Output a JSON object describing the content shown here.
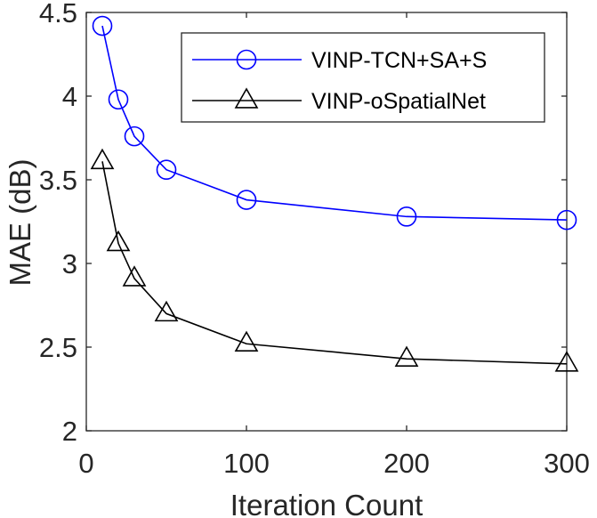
{
  "chart_data": {
    "type": "line",
    "xlabel": "Iteration Count",
    "ylabel": "MAE (dB)",
    "xlim": [
      0,
      300
    ],
    "ylim": [
      2,
      4.5
    ],
    "xticks": [
      0,
      100,
      200,
      300
    ],
    "xtick_labels": [
      "0",
      "100",
      "200",
      "300"
    ],
    "yticks": [
      2,
      2.5,
      3,
      3.5,
      4,
      4.5
    ],
    "ytick_labels": [
      "2",
      "2.5",
      "3",
      "3.5",
      "4",
      "4.5"
    ],
    "grid": false,
    "legend_position": "top-right",
    "x": [
      10,
      20,
      30,
      50,
      100,
      200,
      300
    ],
    "series": [
      {
        "name": "VINP-TCN+SA+S",
        "values": [
          4.42,
          3.98,
          3.76,
          3.56,
          3.38,
          3.28,
          3.26
        ],
        "color": "#0000ff",
        "marker": "circle"
      },
      {
        "name": "VINP-oSpatialNet",
        "values": [
          3.61,
          3.12,
          2.91,
          2.7,
          2.52,
          2.43,
          2.4
        ],
        "color": "#000000",
        "marker": "triangle"
      }
    ]
  }
}
